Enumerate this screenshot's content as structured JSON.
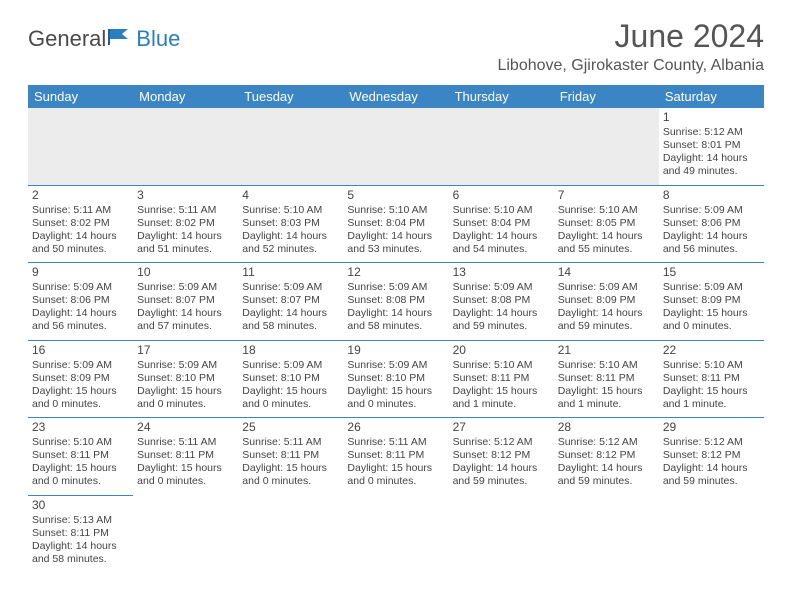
{
  "logo": {
    "general": "General",
    "blue": "Blue"
  },
  "title": "June 2024",
  "location": "Libohove, Gjirokaster County, Albania",
  "colors": {
    "header_bg": "#3b85c4",
    "header_text": "#ffffff",
    "border": "#3b85c4",
    "logo_blue": "#2a7fbf",
    "text": "#444444",
    "empty_bg": "#ececec"
  },
  "dayHeaders": [
    "Sunday",
    "Monday",
    "Tuesday",
    "Wednesday",
    "Thursday",
    "Friday",
    "Saturday"
  ],
  "weeks": [
    [
      null,
      null,
      null,
      null,
      null,
      null,
      {
        "n": "1",
        "r": "5:12 AM",
        "s": "8:01 PM",
        "d": "14 hours and 49 minutes."
      }
    ],
    [
      {
        "n": "2",
        "r": "5:11 AM",
        "s": "8:02 PM",
        "d": "14 hours and 50 minutes."
      },
      {
        "n": "3",
        "r": "5:11 AM",
        "s": "8:02 PM",
        "d": "14 hours and 51 minutes."
      },
      {
        "n": "4",
        "r": "5:10 AM",
        "s": "8:03 PM",
        "d": "14 hours and 52 minutes."
      },
      {
        "n": "5",
        "r": "5:10 AM",
        "s": "8:04 PM",
        "d": "14 hours and 53 minutes."
      },
      {
        "n": "6",
        "r": "5:10 AM",
        "s": "8:04 PM",
        "d": "14 hours and 54 minutes."
      },
      {
        "n": "7",
        "r": "5:10 AM",
        "s": "8:05 PM",
        "d": "14 hours and 55 minutes."
      },
      {
        "n": "8",
        "r": "5:09 AM",
        "s": "8:06 PM",
        "d": "14 hours and 56 minutes."
      }
    ],
    [
      {
        "n": "9",
        "r": "5:09 AM",
        "s": "8:06 PM",
        "d": "14 hours and 56 minutes."
      },
      {
        "n": "10",
        "r": "5:09 AM",
        "s": "8:07 PM",
        "d": "14 hours and 57 minutes."
      },
      {
        "n": "11",
        "r": "5:09 AM",
        "s": "8:07 PM",
        "d": "14 hours and 58 minutes."
      },
      {
        "n": "12",
        "r": "5:09 AM",
        "s": "8:08 PM",
        "d": "14 hours and 58 minutes."
      },
      {
        "n": "13",
        "r": "5:09 AM",
        "s": "8:08 PM",
        "d": "14 hours and 59 minutes."
      },
      {
        "n": "14",
        "r": "5:09 AM",
        "s": "8:09 PM",
        "d": "14 hours and 59 minutes."
      },
      {
        "n": "15",
        "r": "5:09 AM",
        "s": "8:09 PM",
        "d": "15 hours and 0 minutes."
      }
    ],
    [
      {
        "n": "16",
        "r": "5:09 AM",
        "s": "8:09 PM",
        "d": "15 hours and 0 minutes."
      },
      {
        "n": "17",
        "r": "5:09 AM",
        "s": "8:10 PM",
        "d": "15 hours and 0 minutes."
      },
      {
        "n": "18",
        "r": "5:09 AM",
        "s": "8:10 PM",
        "d": "15 hours and 0 minutes."
      },
      {
        "n": "19",
        "r": "5:09 AM",
        "s": "8:10 PM",
        "d": "15 hours and 0 minutes."
      },
      {
        "n": "20",
        "r": "5:10 AM",
        "s": "8:11 PM",
        "d": "15 hours and 1 minute."
      },
      {
        "n": "21",
        "r": "5:10 AM",
        "s": "8:11 PM",
        "d": "15 hours and 1 minute."
      },
      {
        "n": "22",
        "r": "5:10 AM",
        "s": "8:11 PM",
        "d": "15 hours and 1 minute."
      }
    ],
    [
      {
        "n": "23",
        "r": "5:10 AM",
        "s": "8:11 PM",
        "d": "15 hours and 0 minutes."
      },
      {
        "n": "24",
        "r": "5:11 AM",
        "s": "8:11 PM",
        "d": "15 hours and 0 minutes."
      },
      {
        "n": "25",
        "r": "5:11 AM",
        "s": "8:11 PM",
        "d": "15 hours and 0 minutes."
      },
      {
        "n": "26",
        "r": "5:11 AM",
        "s": "8:11 PM",
        "d": "15 hours and 0 minutes."
      },
      {
        "n": "27",
        "r": "5:12 AM",
        "s": "8:12 PM",
        "d": "14 hours and 59 minutes."
      },
      {
        "n": "28",
        "r": "5:12 AM",
        "s": "8:12 PM",
        "d": "14 hours and 59 minutes."
      },
      {
        "n": "29",
        "r": "5:12 AM",
        "s": "8:12 PM",
        "d": "14 hours and 59 minutes."
      }
    ],
    [
      {
        "n": "30",
        "r": "5:13 AM",
        "s": "8:11 PM",
        "d": "14 hours and 58 minutes."
      },
      null,
      null,
      null,
      null,
      null,
      null
    ]
  ],
  "labels": {
    "sunrise": "Sunrise: ",
    "sunset": "Sunset: ",
    "daylight": "Daylight: "
  }
}
